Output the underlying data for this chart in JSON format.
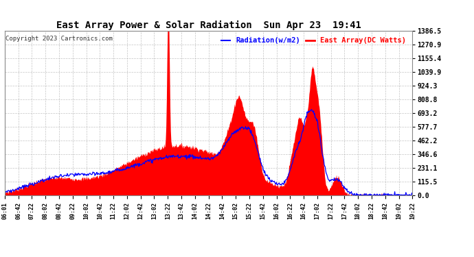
{
  "title": "East Array Power & Solar Radiation  Sun Apr 23  19:41",
  "copyright": "Copyright 2023 Cartronics.com",
  "legend_radiation": "Radiation(w/m2)",
  "legend_east_array": "East Array(DC Watts)",
  "y_ticks": [
    0.0,
    115.5,
    231.1,
    346.6,
    462.2,
    577.7,
    693.2,
    808.8,
    924.3,
    1039.9,
    1155.4,
    1270.9,
    1386.5
  ],
  "background_color": "#ffffff",
  "fill_color": "#ff0000",
  "line_color_radiation": "#0000ff",
  "line_color_east": "#ff0000",
  "grid_color": "#aaaaaa",
  "title_color": "#000000",
  "ymax": 1386.5,
  "ymin": 0.0,
  "x_labels": [
    "06:01",
    "06:42",
    "07:22",
    "08:02",
    "08:42",
    "09:22",
    "10:02",
    "10:42",
    "11:22",
    "12:02",
    "12:42",
    "13:02",
    "13:22",
    "13:42",
    "14:02",
    "14:22",
    "14:42",
    "15:02",
    "15:22",
    "15:42",
    "16:02",
    "16:22",
    "16:42",
    "17:02",
    "17:22",
    "17:42",
    "18:02",
    "18:22",
    "18:42",
    "19:02",
    "19:22"
  ]
}
